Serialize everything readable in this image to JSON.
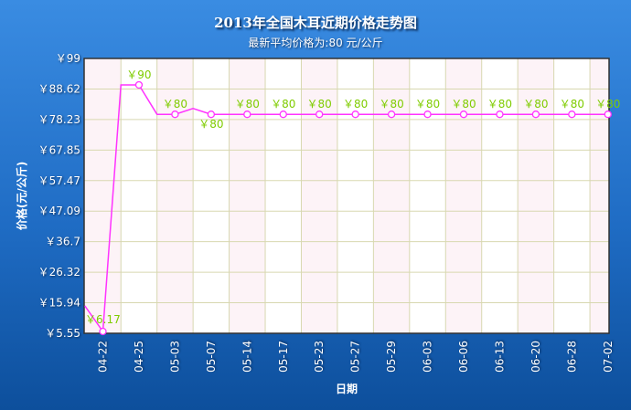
{
  "chart_data": {
    "type": "line",
    "title": "2013年全国木耳近期价格走势图",
    "subtitle": "最新平均价格为:80 元/公斤",
    "xlabel": "日期",
    "ylabel": "价格(元/公斤)",
    "ylim": [
      5.55,
      99
    ],
    "yticks": [
      "￥5.55",
      "￥15.94",
      "￥26.32",
      "￥36.7",
      "￥47.09",
      "￥57.47",
      "￥67.85",
      "￥78.23",
      "￥88.62",
      "￥99"
    ],
    "categories": [
      "04-22",
      "04-25",
      "05-03",
      "05-07",
      "05-14",
      "05-17",
      "05-23",
      "05-27",
      "05-29",
      "06-03",
      "06-06",
      "06-13",
      "06-20",
      "06-28",
      "07-02"
    ],
    "values": [
      6.17,
      90,
      80,
      80,
      80,
      80,
      80,
      80,
      80,
      80,
      80,
      80,
      80,
      80,
      80
    ],
    "data_labels": [
      "￥6.17",
      "￥90",
      "￥80",
      "￥80",
      "￥80",
      "￥80",
      "￥80",
      "￥80",
      "￥80",
      "￥80",
      "￥80",
      "￥80",
      "￥80",
      "￥80",
      "￥80"
    ],
    "intermediate_vertices": [
      {
        "x": -0.5,
        "y": 14.9
      },
      {
        "x": 0.5,
        "y": 90
      },
      {
        "x": 1.5,
        "y": 80
      },
      {
        "x": 2.5,
        "y": 82
      }
    ],
    "grid": true,
    "legend": "none",
    "colors": {
      "line": "#ff33ff",
      "label": "#7fcc00",
      "band": "#fdf3f7",
      "grid": "#d8d8b0"
    }
  }
}
